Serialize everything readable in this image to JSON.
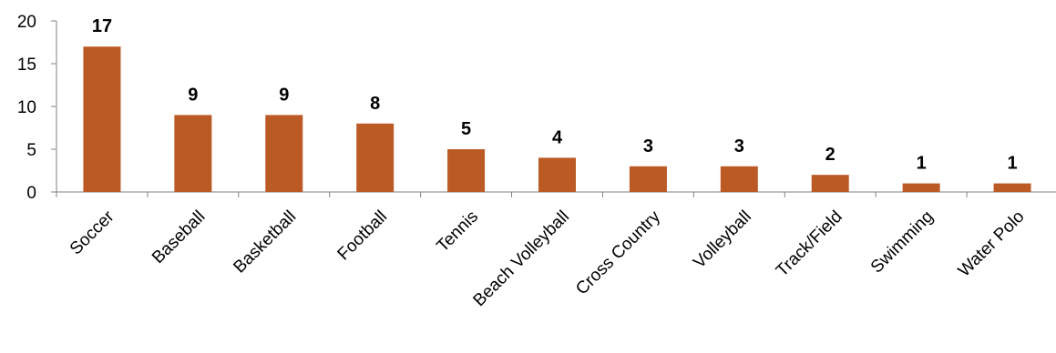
{
  "chart_data": {
    "type": "bar",
    "categories": [
      "Soccer",
      "Baseball",
      "Basketball",
      "Football",
      "Tennis",
      "Beach Volleyball",
      "Cross Country",
      "Volleyball",
      "Track/Field",
      "Swimming",
      "Water Polo"
    ],
    "values": [
      17,
      9,
      9,
      8,
      5,
      4,
      3,
      3,
      2,
      1,
      1
    ],
    "ylim": [
      0,
      20
    ],
    "yticks": [
      0,
      5,
      10,
      15,
      20
    ],
    "title": "",
    "xlabel": "",
    "ylabel": "",
    "grid": false,
    "legend": "none",
    "bar_color": "#BC5A26"
  }
}
